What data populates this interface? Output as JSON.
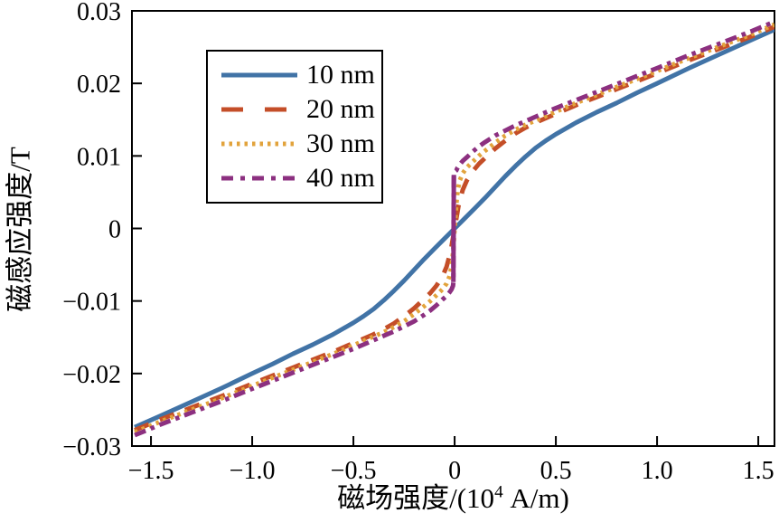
{
  "figure": {
    "background": "#ffffff",
    "text_color": "#000000"
  },
  "chart_data": {
    "type": "line",
    "title": "",
    "xlabel": {
      "pre": "磁场强度/(10",
      "sup": "4",
      "post": " A/m)",
      "full": "磁场强度/(10^4 A/m)"
    },
    "ylabel": "磁感应强度/T",
    "xlim": [
      -1.594,
      1.58
    ],
    "ylim": [
      -0.03,
      0.03
    ],
    "grid": false,
    "axis_color": "#000000",
    "legend": {
      "position": "upper-left-inside",
      "border": "#000000"
    },
    "xticks": [
      {
        "v": -1.5,
        "label": "−1.5"
      },
      {
        "v": -1.0,
        "label": "−1.0"
      },
      {
        "v": -0.5,
        "label": "−0.5"
      },
      {
        "v": 0,
        "label": "0"
      },
      {
        "v": 0.5,
        "label": "0.5"
      },
      {
        "v": 1.0,
        "label": "1.0"
      },
      {
        "v": 1.5,
        "label": "1.5"
      }
    ],
    "yticks": [
      {
        "v": 0.03,
        "label": "0.03"
      },
      {
        "v": 0.02,
        "label": "0.02"
      },
      {
        "v": 0.01,
        "label": "0.01"
      },
      {
        "v": 0,
        "label": "0"
      },
      {
        "v": -0.01,
        "label": "−0.01"
      },
      {
        "v": -0.02,
        "label": "−0.02"
      },
      {
        "v": -0.03,
        "label": "−0.03"
      }
    ],
    "series": [
      {
        "name": "10 nm",
        "color": "#4173a6",
        "style": "solid",
        "width": 5,
        "dash": "",
        "legend_dash": "",
        "points": [
          [
            -1.58,
            -0.0274
          ],
          [
            -1.45,
            -0.0258
          ],
          [
            -1.3,
            -0.0239
          ],
          [
            -1.15,
            -0.022
          ],
          [
            -1.0,
            -0.02
          ],
          [
            -0.9,
            -0.0187
          ],
          [
            -0.8,
            -0.0173
          ],
          [
            -0.7,
            -0.016
          ],
          [
            -0.6,
            -0.0146
          ],
          [
            -0.5,
            -0.013
          ],
          [
            -0.45,
            -0.0121
          ],
          [
            -0.4,
            -0.0111
          ],
          [
            -0.35,
            -0.0099
          ],
          [
            -0.3,
            -0.0086
          ],
          [
            -0.25,
            -0.0072
          ],
          [
            -0.2,
            -0.0057
          ],
          [
            -0.15,
            -0.0042
          ],
          [
            -0.1,
            -0.0028
          ],
          [
            -0.05,
            -0.0014
          ],
          [
            0,
            0
          ],
          [
            0.05,
            0.0014
          ],
          [
            0.1,
            0.0028
          ],
          [
            0.15,
            0.0042
          ],
          [
            0.2,
            0.0057
          ],
          [
            0.25,
            0.0072
          ],
          [
            0.3,
            0.0086
          ],
          [
            0.35,
            0.0099
          ],
          [
            0.4,
            0.0111
          ],
          [
            0.45,
            0.0121
          ],
          [
            0.5,
            0.013
          ],
          [
            0.6,
            0.0146
          ],
          [
            0.7,
            0.016
          ],
          [
            0.8,
            0.0173
          ],
          [
            0.9,
            0.0187
          ],
          [
            1.0,
            0.02
          ],
          [
            1.15,
            0.022
          ],
          [
            1.3,
            0.0239
          ],
          [
            1.45,
            0.0258
          ],
          [
            1.58,
            0.0274
          ]
        ]
      },
      {
        "name": "20 nm",
        "color": "#c44e28",
        "style": "dashed",
        "width": 5,
        "dash": "17 13",
        "legend_dash": "24 24",
        "points": [
          [
            -1.58,
            -0.0278
          ],
          [
            -1.45,
            -0.0263
          ],
          [
            -1.3,
            -0.0247
          ],
          [
            -1.15,
            -0.0231
          ],
          [
            -1.0,
            -0.0214
          ],
          [
            -0.9,
            -0.0203
          ],
          [
            -0.8,
            -0.0192
          ],
          [
            -0.7,
            -0.0181
          ],
          [
            -0.6,
            -0.017
          ],
          [
            -0.5,
            -0.0158
          ],
          [
            -0.4,
            -0.0146
          ],
          [
            -0.35,
            -0.0139
          ],
          [
            -0.3,
            -0.0131
          ],
          [
            -0.25,
            -0.0121
          ],
          [
            -0.2,
            -0.011
          ],
          [
            -0.15,
            -0.0097
          ],
          [
            -0.12,
            -0.0089
          ],
          [
            -0.09,
            -0.0079
          ],
          [
            -0.06,
            -0.0066
          ],
          [
            -0.04,
            -0.0053
          ],
          [
            -0.02,
            -0.0032
          ],
          [
            0,
            0
          ],
          [
            0.02,
            0.0032
          ],
          [
            0.04,
            0.0053
          ],
          [
            0.06,
            0.0066
          ],
          [
            0.09,
            0.0079
          ],
          [
            0.12,
            0.0089
          ],
          [
            0.15,
            0.0097
          ],
          [
            0.2,
            0.011
          ],
          [
            0.25,
            0.0121
          ],
          [
            0.3,
            0.0131
          ],
          [
            0.35,
            0.0139
          ],
          [
            0.4,
            0.0146
          ],
          [
            0.5,
            0.0158
          ],
          [
            0.6,
            0.017
          ],
          [
            0.7,
            0.0181
          ],
          [
            0.8,
            0.0192
          ],
          [
            0.9,
            0.0203
          ],
          [
            1.0,
            0.0214
          ],
          [
            1.15,
            0.0231
          ],
          [
            1.3,
            0.0247
          ],
          [
            1.45,
            0.0263
          ],
          [
            1.58,
            0.0278
          ]
        ]
      },
      {
        "name": "30 nm",
        "color": "#e2a33c",
        "style": "dotted",
        "width": 5,
        "dash": "3.5 5",
        "legend_dash": "3.5 5",
        "points": [
          [
            -1.58,
            -0.0281
          ],
          [
            -1.45,
            -0.0266
          ],
          [
            -1.3,
            -0.025
          ],
          [
            -1.15,
            -0.0234
          ],
          [
            -1.0,
            -0.0217
          ],
          [
            -0.9,
            -0.0206
          ],
          [
            -0.8,
            -0.0195
          ],
          [
            -0.7,
            -0.0184
          ],
          [
            -0.6,
            -0.0173
          ],
          [
            -0.5,
            -0.0161
          ],
          [
            -0.4,
            -0.0149
          ],
          [
            -0.35,
            -0.0143
          ],
          [
            -0.3,
            -0.0136
          ],
          [
            -0.25,
            -0.0128
          ],
          [
            -0.2,
            -0.0118
          ],
          [
            -0.15,
            -0.0107
          ],
          [
            -0.12,
            -0.01
          ],
          [
            -0.09,
            -0.0092
          ],
          [
            -0.06,
            -0.0084
          ],
          [
            -0.04,
            -0.0076
          ],
          [
            -0.025,
            -0.0066
          ],
          [
            -0.015,
            -0.0052
          ],
          [
            -0.008,
            -0.0033
          ],
          [
            0,
            0
          ],
          [
            0.008,
            0.0033
          ],
          [
            0.015,
            0.0052
          ],
          [
            0.025,
            0.0066
          ],
          [
            0.04,
            0.0076
          ],
          [
            0.06,
            0.0084
          ],
          [
            0.09,
            0.0092
          ],
          [
            0.12,
            0.01
          ],
          [
            0.15,
            0.0107
          ],
          [
            0.2,
            0.0118
          ],
          [
            0.25,
            0.0128
          ],
          [
            0.3,
            0.0136
          ],
          [
            0.35,
            0.0143
          ],
          [
            0.4,
            0.0149
          ],
          [
            0.5,
            0.0161
          ],
          [
            0.6,
            0.0173
          ],
          [
            0.7,
            0.0184
          ],
          [
            0.8,
            0.0195
          ],
          [
            0.9,
            0.0206
          ],
          [
            1.0,
            0.0217
          ],
          [
            1.15,
            0.0234
          ],
          [
            1.3,
            0.025
          ],
          [
            1.45,
            0.0266
          ],
          [
            1.58,
            0.0281
          ]
        ]
      },
      {
        "name": "40 nm",
        "color": "#8c3080",
        "style": "dashdot",
        "width": 5,
        "dash": "13 6 4.5 6",
        "legend_dash": "13 8 5 8",
        "points": [
          [
            -1.58,
            -0.0285
          ],
          [
            -1.45,
            -0.027
          ],
          [
            -1.3,
            -0.0254
          ],
          [
            -1.15,
            -0.0238
          ],
          [
            -1.0,
            -0.0221
          ],
          [
            -0.9,
            -0.021
          ],
          [
            -0.8,
            -0.0199
          ],
          [
            -0.7,
            -0.0188
          ],
          [
            -0.6,
            -0.0177
          ],
          [
            -0.5,
            -0.0166
          ],
          [
            -0.4,
            -0.0154
          ],
          [
            -0.35,
            -0.0148
          ],
          [
            -0.3,
            -0.0142
          ],
          [
            -0.25,
            -0.0135
          ],
          [
            -0.2,
            -0.0128
          ],
          [
            -0.15,
            -0.0119
          ],
          [
            -0.12,
            -0.0113
          ],
          [
            -0.09,
            -0.0106
          ],
          [
            -0.06,
            -0.0098
          ],
          [
            -0.04,
            -0.0093
          ],
          [
            -0.025,
            -0.0088
          ],
          [
            -0.015,
            -0.0084
          ],
          [
            -0.008,
            -0.0079
          ],
          [
            -0.006,
            -0.0074
          ],
          [
            -0.005,
            0
          ],
          [
            -0.004,
            0.0074
          ],
          [
            0,
            0.0078
          ],
          [
            0.008,
            0.008
          ],
          [
            0.015,
            0.0084
          ],
          [
            0.025,
            0.0088
          ],
          [
            0.04,
            0.0093
          ],
          [
            0.06,
            0.0098
          ],
          [
            0.09,
            0.0106
          ],
          [
            0.12,
            0.0113
          ],
          [
            0.15,
            0.0119
          ],
          [
            0.2,
            0.0128
          ],
          [
            0.25,
            0.0135
          ],
          [
            0.3,
            0.0142
          ],
          [
            0.35,
            0.0148
          ],
          [
            0.4,
            0.0154
          ],
          [
            0.5,
            0.0166
          ],
          [
            0.6,
            0.0177
          ],
          [
            0.7,
            0.0188
          ],
          [
            0.8,
            0.0199
          ],
          [
            0.9,
            0.021
          ],
          [
            1.0,
            0.0221
          ],
          [
            1.15,
            0.0238
          ],
          [
            1.3,
            0.0254
          ],
          [
            1.45,
            0.027
          ],
          [
            1.58,
            0.0285
          ]
        ],
        "solid_segment": [
          [
            -0.006,
            -0.0074
          ],
          [
            -0.004,
            0.0074
          ]
        ]
      }
    ]
  }
}
